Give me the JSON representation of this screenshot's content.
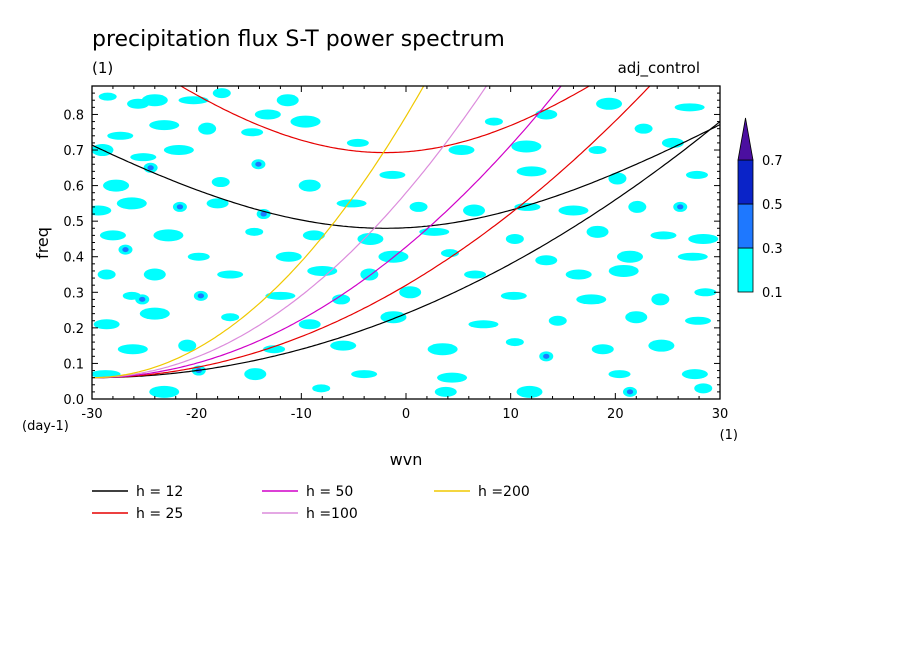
{
  "chart_data": {
    "type": "heatmap",
    "title": "precipitation flux S-T power spectrum",
    "subtitle_left": "(1)",
    "subtitle_right": "adj_control",
    "xlabel": "wvn",
    "ylabel": "freq",
    "x_unit": "(1)",
    "y_unit": "(day-1)",
    "xlim": [
      -30,
      30
    ],
    "ylim": [
      0,
      0.88
    ],
    "x_ticks": [
      -30,
      -20,
      -10,
      0,
      10,
      20,
      30
    ],
    "x_tick_labels": [
      "-30",
      "-20",
      "-10",
      "0",
      "10",
      "20",
      "30"
    ],
    "y_ticks": [
      0,
      0.1,
      0.2,
      0.3,
      0.4,
      0.5,
      0.6,
      0.7,
      0.8
    ],
    "y_tick_labels": [
      "0.0",
      "0.1",
      "0.2",
      "0.3",
      "0.4",
      "0.5",
      "0.6",
      "0.7",
      "0.8"
    ],
    "colorbar": {
      "levels": [
        "0.1",
        "0.3",
        "0.5",
        "0.7"
      ],
      "colors": [
        "#00ffff",
        "#1e78ff",
        "#0a23c8",
        "#4b0fa0"
      ]
    },
    "dispersion_curves": [
      {
        "name": "h = 12",
        "h": 12,
        "color": "#000000"
      },
      {
        "name": "h = 25",
        "h": 25,
        "color": "#e60000"
      },
      {
        "name": "h = 50",
        "h": 50,
        "color": "#d000c8"
      },
      {
        "name": "h =100",
        "h": 100,
        "color": "#dc8cdc"
      },
      {
        "name": "h =200",
        "h": 200,
        "color": "#f0c800"
      }
    ],
    "heatmap_patches": [
      {
        "x": -28.5,
        "y": 0.85,
        "level": 1
      },
      {
        "x": -25.6,
        "y": 0.83,
        "level": 1
      },
      {
        "x": -24.0,
        "y": 0.84,
        "level": 1
      },
      {
        "x": -20.3,
        "y": 0.84,
        "level": 1
      },
      {
        "x": -17.6,
        "y": 0.86,
        "level": 1
      },
      {
        "x": -11.3,
        "y": 0.84,
        "level": 1
      },
      {
        "x": -27.3,
        "y": 0.74,
        "level": 1
      },
      {
        "x": -23.1,
        "y": 0.77,
        "level": 1
      },
      {
        "x": -19.0,
        "y": 0.76,
        "level": 1
      },
      {
        "x": -14.7,
        "y": 0.75,
        "level": 1
      },
      {
        "x": -13.2,
        "y": 0.8,
        "level": 1
      },
      {
        "x": -9.6,
        "y": 0.78,
        "level": 1
      },
      {
        "x": 8.4,
        "y": 0.78,
        "level": 1
      },
      {
        "x": 13.4,
        "y": 0.8,
        "level": 1
      },
      {
        "x": 19.4,
        "y": 0.83,
        "level": 1
      },
      {
        "x": 27.1,
        "y": 0.82,
        "level": 1
      },
      {
        "x": 22.7,
        "y": 0.76,
        "level": 1
      },
      {
        "x": -29.0,
        "y": 0.7,
        "level": 1
      },
      {
        "x": -25.1,
        "y": 0.68,
        "level": 1
      },
      {
        "x": -21.7,
        "y": 0.7,
        "level": 1
      },
      {
        "x": -14.1,
        "y": 0.66,
        "level": 2
      },
      {
        "x": -4.6,
        "y": 0.72,
        "level": 1
      },
      {
        "x": 5.3,
        "y": 0.7,
        "level": 1
      },
      {
        "x": 11.5,
        "y": 0.71,
        "level": 1
      },
      {
        "x": 18.3,
        "y": 0.7,
        "level": 1
      },
      {
        "x": 25.5,
        "y": 0.72,
        "level": 1
      },
      {
        "x": -27.7,
        "y": 0.6,
        "level": 1
      },
      {
        "x": -24.4,
        "y": 0.65,
        "level": 2
      },
      {
        "x": -17.7,
        "y": 0.61,
        "level": 1
      },
      {
        "x": -9.2,
        "y": 0.6,
        "level": 1
      },
      {
        "x": -1.3,
        "y": 0.63,
        "level": 1
      },
      {
        "x": 12.0,
        "y": 0.64,
        "level": 1
      },
      {
        "x": 20.2,
        "y": 0.62,
        "level": 1
      },
      {
        "x": 27.8,
        "y": 0.63,
        "level": 1
      },
      {
        "x": -29.4,
        "y": 0.53,
        "level": 1
      },
      {
        "x": -26.2,
        "y": 0.55,
        "level": 1
      },
      {
        "x": -21.6,
        "y": 0.54,
        "level": 2
      },
      {
        "x": -18.0,
        "y": 0.55,
        "level": 1
      },
      {
        "x": -13.6,
        "y": 0.52,
        "level": 2
      },
      {
        "x": -5.2,
        "y": 0.55,
        "level": 1
      },
      {
        "x": 1.2,
        "y": 0.54,
        "level": 1
      },
      {
        "x": 6.5,
        "y": 0.53,
        "level": 1
      },
      {
        "x": 11.6,
        "y": 0.54,
        "level": 1
      },
      {
        "x": 16.0,
        "y": 0.53,
        "level": 1
      },
      {
        "x": 22.1,
        "y": 0.54,
        "level": 1
      },
      {
        "x": 26.2,
        "y": 0.54,
        "level": 2
      },
      {
        "x": -28.0,
        "y": 0.46,
        "level": 1
      },
      {
        "x": -22.7,
        "y": 0.46,
        "level": 1
      },
      {
        "x": -14.5,
        "y": 0.47,
        "level": 1
      },
      {
        "x": -8.8,
        "y": 0.46,
        "level": 1
      },
      {
        "x": -3.4,
        "y": 0.45,
        "level": 1
      },
      {
        "x": 2.7,
        "y": 0.47,
        "level": 1
      },
      {
        "x": 10.4,
        "y": 0.45,
        "level": 1
      },
      {
        "x": 18.3,
        "y": 0.47,
        "level": 1
      },
      {
        "x": 24.6,
        "y": 0.46,
        "level": 1
      },
      {
        "x": 28.4,
        "y": 0.45,
        "level": 1
      },
      {
        "x": -26.8,
        "y": 0.42,
        "level": 2
      },
      {
        "x": -19.8,
        "y": 0.4,
        "level": 1
      },
      {
        "x": -11.2,
        "y": 0.4,
        "level": 1
      },
      {
        "x": -1.2,
        "y": 0.4,
        "level": 1
      },
      {
        "x": 4.2,
        "y": 0.41,
        "level": 1
      },
      {
        "x": 13.4,
        "y": 0.39,
        "level": 1
      },
      {
        "x": 21.4,
        "y": 0.4,
        "level": 1
      },
      {
        "x": 27.4,
        "y": 0.4,
        "level": 1
      },
      {
        "x": -28.6,
        "y": 0.35,
        "level": 1
      },
      {
        "x": -24.0,
        "y": 0.35,
        "level": 1
      },
      {
        "x": -16.8,
        "y": 0.35,
        "level": 1
      },
      {
        "x": -8.0,
        "y": 0.36,
        "level": 1
      },
      {
        "x": -3.5,
        "y": 0.35,
        "level": 1
      },
      {
        "x": 6.6,
        "y": 0.35,
        "level": 1
      },
      {
        "x": 16.5,
        "y": 0.35,
        "level": 1
      },
      {
        "x": 20.8,
        "y": 0.36,
        "level": 1
      },
      {
        "x": -26.2,
        "y": 0.29,
        "level": 1
      },
      {
        "x": -25.2,
        "y": 0.28,
        "level": 2
      },
      {
        "x": -19.6,
        "y": 0.29,
        "level": 2
      },
      {
        "x": -12.0,
        "y": 0.29,
        "level": 1
      },
      {
        "x": -6.2,
        "y": 0.28,
        "level": 1
      },
      {
        "x": 0.4,
        "y": 0.3,
        "level": 1
      },
      {
        "x": 10.3,
        "y": 0.29,
        "level": 1
      },
      {
        "x": 17.7,
        "y": 0.28,
        "level": 1
      },
      {
        "x": 24.3,
        "y": 0.28,
        "level": 1
      },
      {
        "x": 28.6,
        "y": 0.3,
        "level": 1
      },
      {
        "x": -28.6,
        "y": 0.21,
        "level": 1
      },
      {
        "x": -24.0,
        "y": 0.24,
        "level": 1
      },
      {
        "x": -16.8,
        "y": 0.23,
        "level": 1
      },
      {
        "x": -9.2,
        "y": 0.21,
        "level": 1
      },
      {
        "x": -1.2,
        "y": 0.23,
        "level": 1
      },
      {
        "x": 7.4,
        "y": 0.21,
        "level": 1
      },
      {
        "x": 14.5,
        "y": 0.22,
        "level": 1
      },
      {
        "x": 22.0,
        "y": 0.23,
        "level": 1
      },
      {
        "x": 27.9,
        "y": 0.22,
        "level": 1
      },
      {
        "x": -26.1,
        "y": 0.14,
        "level": 1
      },
      {
        "x": -20.9,
        "y": 0.15,
        "level": 1
      },
      {
        "x": -12.6,
        "y": 0.14,
        "level": 1
      },
      {
        "x": -6.0,
        "y": 0.15,
        "level": 1
      },
      {
        "x": 3.5,
        "y": 0.14,
        "level": 1
      },
      {
        "x": 10.4,
        "y": 0.16,
        "level": 1
      },
      {
        "x": 18.8,
        "y": 0.14,
        "level": 1
      },
      {
        "x": 24.4,
        "y": 0.15,
        "level": 1
      },
      {
        "x": -28.7,
        "y": 0.07,
        "level": 1
      },
      {
        "x": -19.8,
        "y": 0.08,
        "level": 2
      },
      {
        "x": -14.4,
        "y": 0.07,
        "level": 1
      },
      {
        "x": -4.0,
        "y": 0.07,
        "level": 1
      },
      {
        "x": 4.4,
        "y": 0.06,
        "level": 1
      },
      {
        "x": 13.4,
        "y": 0.12,
        "level": 2
      },
      {
        "x": 20.4,
        "y": 0.07,
        "level": 1
      },
      {
        "x": 27.6,
        "y": 0.07,
        "level": 1
      },
      {
        "x": -23.1,
        "y": 0.02,
        "level": 1
      },
      {
        "x": -8.1,
        "y": 0.03,
        "level": 1
      },
      {
        "x": 3.8,
        "y": 0.02,
        "level": 1
      },
      {
        "x": 11.8,
        "y": 0.02,
        "level": 1
      },
      {
        "x": 21.4,
        "y": 0.02,
        "level": 2
      },
      {
        "x": 28.4,
        "y": 0.03,
        "level": 1
      }
    ]
  }
}
